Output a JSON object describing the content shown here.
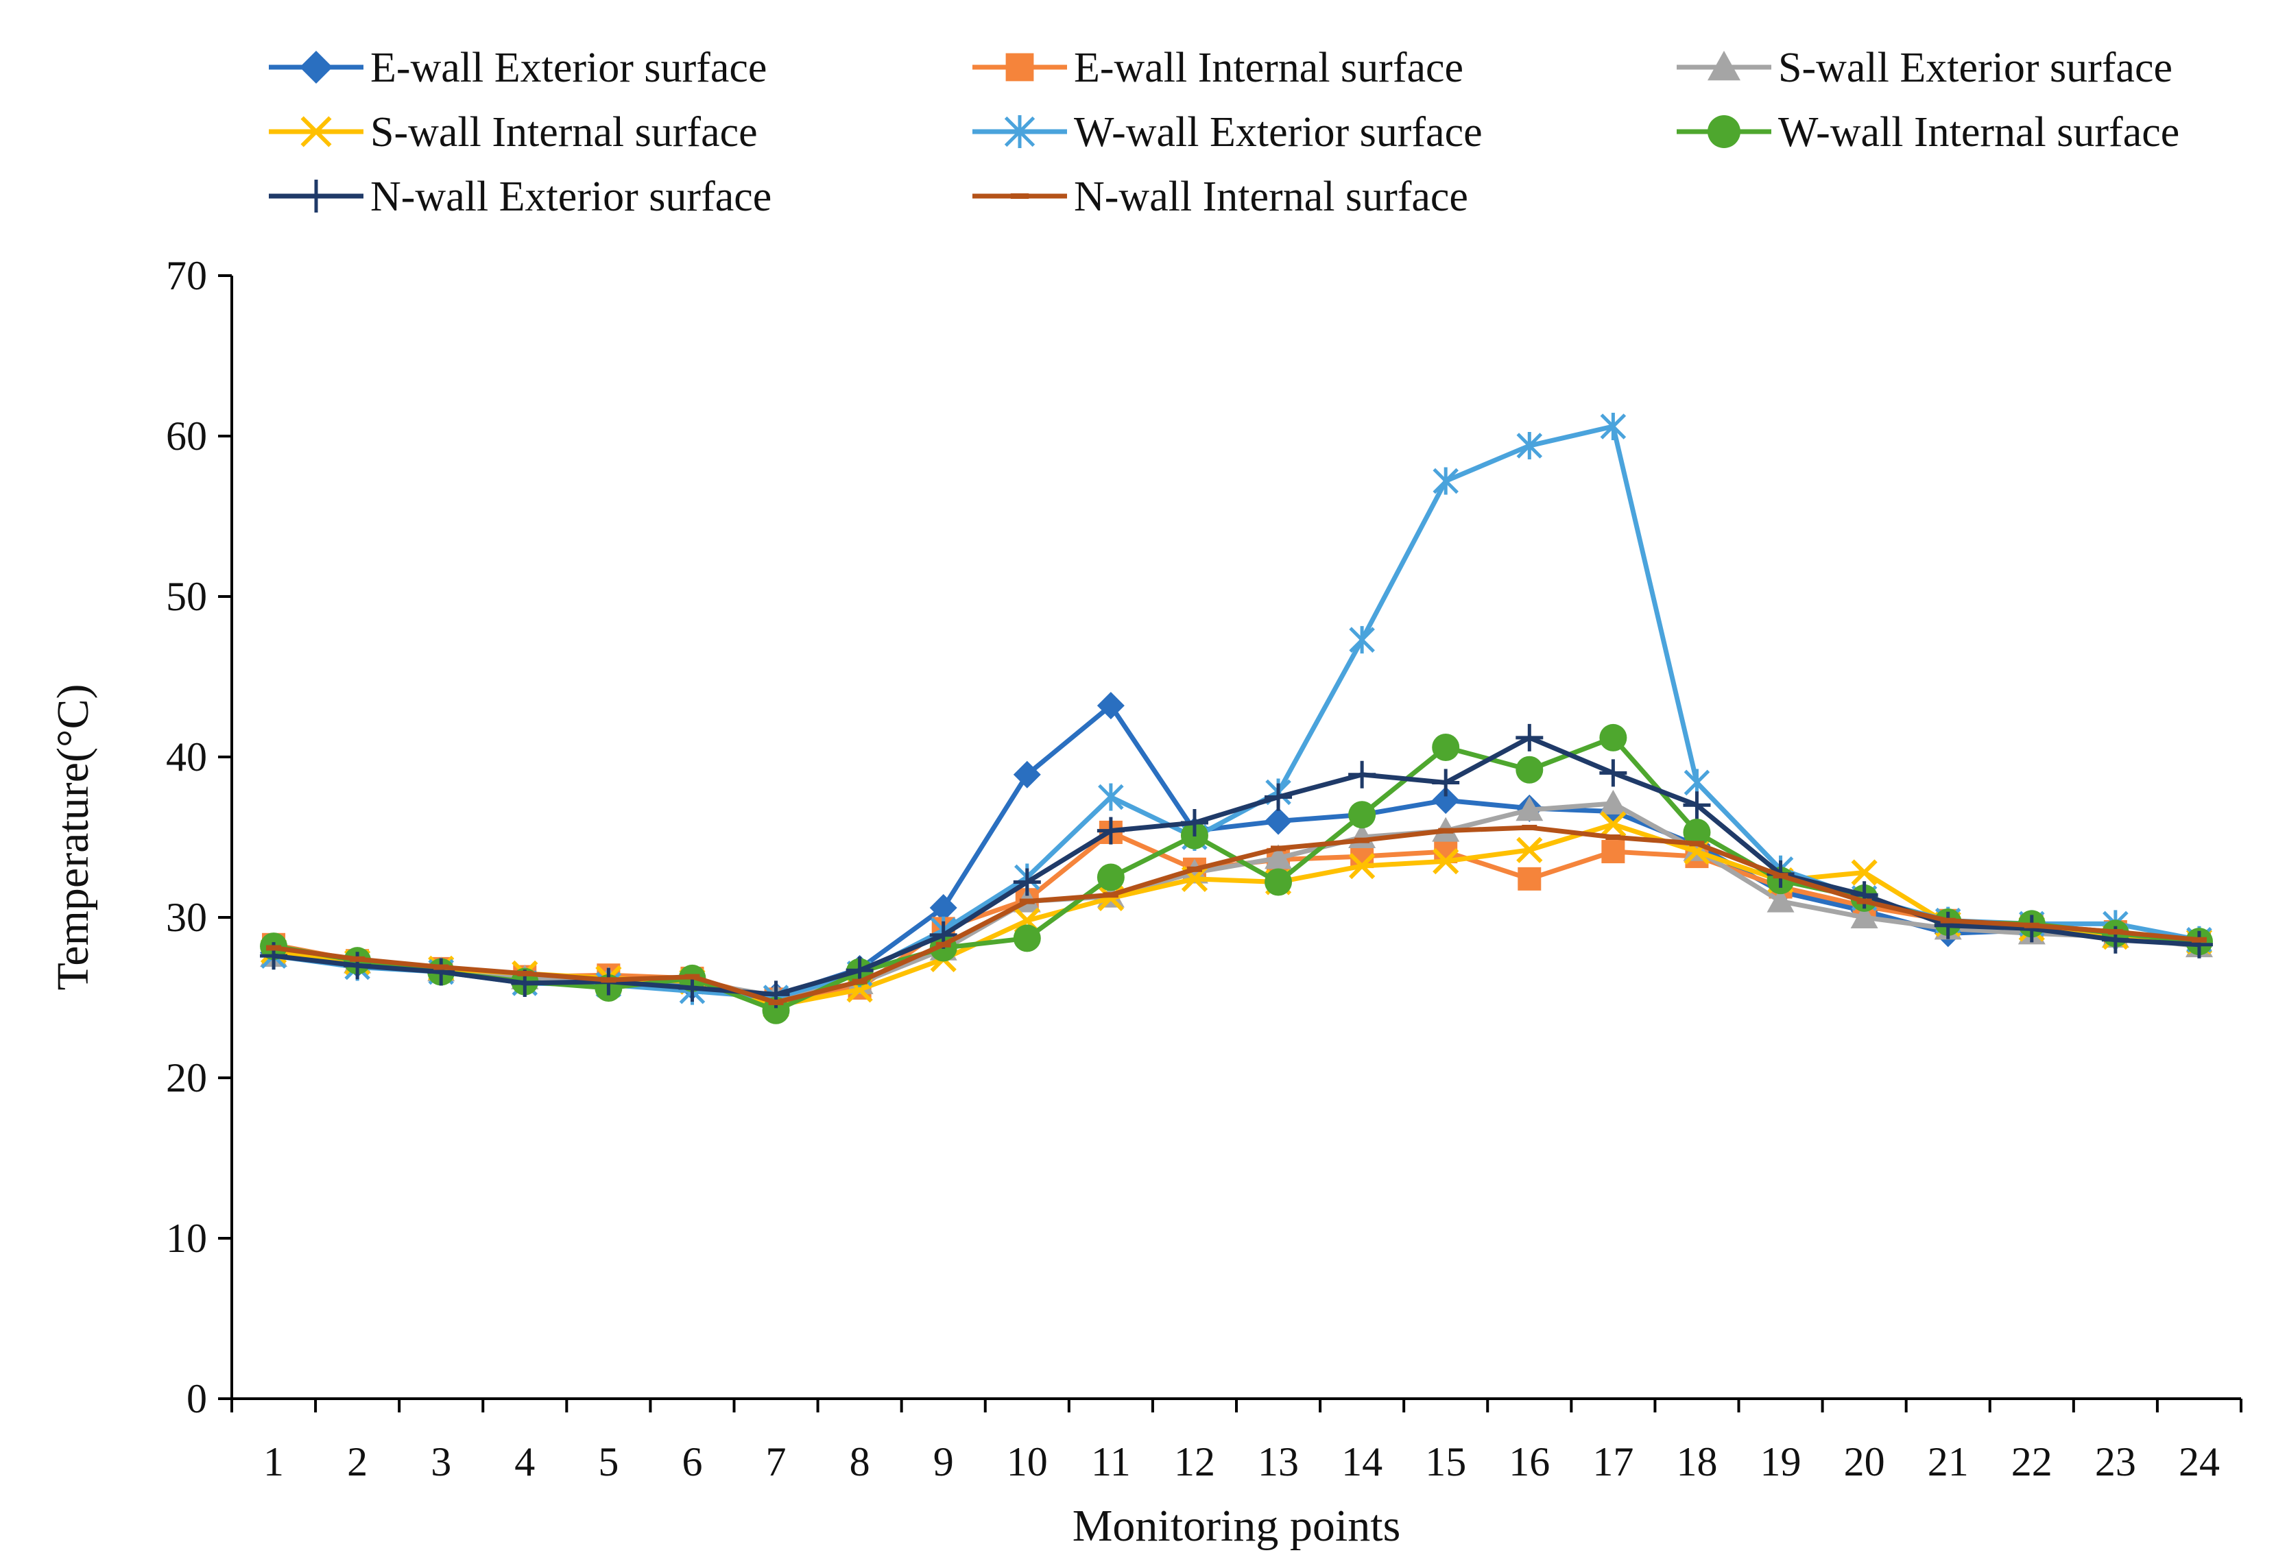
{
  "chart_data": {
    "type": "line",
    "xlabel": "Monitoring points",
    "ylabel": "Temperature(°C)",
    "ylim": [
      0,
      70
    ],
    "yticks": [
      0,
      10,
      20,
      30,
      40,
      50,
      60,
      70
    ],
    "categories": [
      "1",
      "2",
      "3",
      "4",
      "5",
      "6",
      "7",
      "8",
      "9",
      "10",
      "11",
      "12",
      "13",
      "14",
      "15",
      "16",
      "17",
      "18",
      "19",
      "20",
      "21",
      "22",
      "23",
      "24"
    ],
    "grid": false,
    "legend_position": "top",
    "series": [
      {
        "name": "E-wall Exterior surface",
        "color": "#2a6fc0",
        "marker": "diamond",
        "values": [
          27.8,
          27.1,
          26.6,
          26.0,
          25.9,
          25.7,
          25.1,
          26.8,
          30.6,
          38.9,
          43.2,
          35.4,
          36.0,
          36.4,
          37.3,
          36.8,
          36.6,
          34.5,
          31.6,
          30.4,
          29.0,
          29.2,
          28.8,
          28.4
        ]
      },
      {
        "name": "E-wall Internal surface",
        "color": "#f5843b",
        "marker": "square",
        "values": [
          28.3,
          27.3,
          26.8,
          26.3,
          26.4,
          26.2,
          24.9,
          25.6,
          29.3,
          31.1,
          35.3,
          33.0,
          33.6,
          33.8,
          34.1,
          32.4,
          34.1,
          33.8,
          31.9,
          30.7,
          29.8,
          29.5,
          29.1,
          28.5
        ]
      },
      {
        "name": "S-wall Exterior surface",
        "color": "#a5a5a5",
        "marker": "triangle",
        "values": [
          27.6,
          27.2,
          26.7,
          26.2,
          26.1,
          26.0,
          25.1,
          25.9,
          28.0,
          31.0,
          31.3,
          32.8,
          33.7,
          35.0,
          35.4,
          36.7,
          37.1,
          34.2,
          31.0,
          30.0,
          29.3,
          29.0,
          28.8,
          28.2
        ]
      },
      {
        "name": "S-wall Internal surface",
        "color": "#ffc000",
        "marker": "x",
        "values": [
          27.9,
          27.2,
          26.8,
          26.5,
          26.2,
          26.0,
          24.5,
          25.5,
          27.4,
          29.8,
          31.2,
          32.4,
          32.2,
          33.2,
          33.5,
          34.2,
          35.8,
          34.1,
          32.3,
          32.8,
          29.6,
          29.3,
          28.8,
          28.5
        ]
      },
      {
        "name": "W-wall Exterior surface",
        "color": "#4aa3dc",
        "marker": "asterisk",
        "values": [
          27.6,
          26.9,
          26.6,
          25.9,
          25.8,
          25.4,
          25.0,
          26.5,
          29.2,
          32.5,
          37.5,
          35.0,
          37.8,
          47.3,
          57.2,
          59.4,
          60.6,
          38.4,
          33.0,
          31.2,
          29.8,
          29.6,
          29.6,
          28.6
        ]
      },
      {
        "name": "W-wall Internal surface",
        "color": "#4ea72e",
        "marker": "circle",
        "values": [
          28.2,
          27.3,
          26.6,
          26.0,
          25.6,
          26.2,
          24.2,
          26.6,
          28.1,
          28.7,
          32.5,
          35.1,
          32.2,
          36.4,
          40.6,
          39.2,
          41.2,
          35.3,
          32.3,
          31.2,
          29.7,
          29.6,
          29.0,
          28.5
        ]
      },
      {
        "name": "N-wall Exterior surface",
        "color": "#1f3a68",
        "marker": "plus",
        "values": [
          27.6,
          27.0,
          26.6,
          25.9,
          26.0,
          25.6,
          25.2,
          26.7,
          28.9,
          32.2,
          35.4,
          35.9,
          37.5,
          38.9,
          38.4,
          41.2,
          39.0,
          37.0,
          32.7,
          31.4,
          29.5,
          29.3,
          28.6,
          28.3
        ]
      },
      {
        "name": "N-wall Internal surface",
        "color": "#b45218",
        "marker": "dash",
        "values": [
          28.1,
          27.4,
          26.9,
          26.5,
          26.1,
          26.3,
          24.7,
          26.0,
          28.3,
          31.0,
          31.4,
          33.0,
          34.3,
          34.8,
          35.4,
          35.6,
          35.0,
          34.6,
          32.6,
          31.0,
          29.8,
          29.5,
          29.1,
          28.6
        ]
      }
    ]
  }
}
